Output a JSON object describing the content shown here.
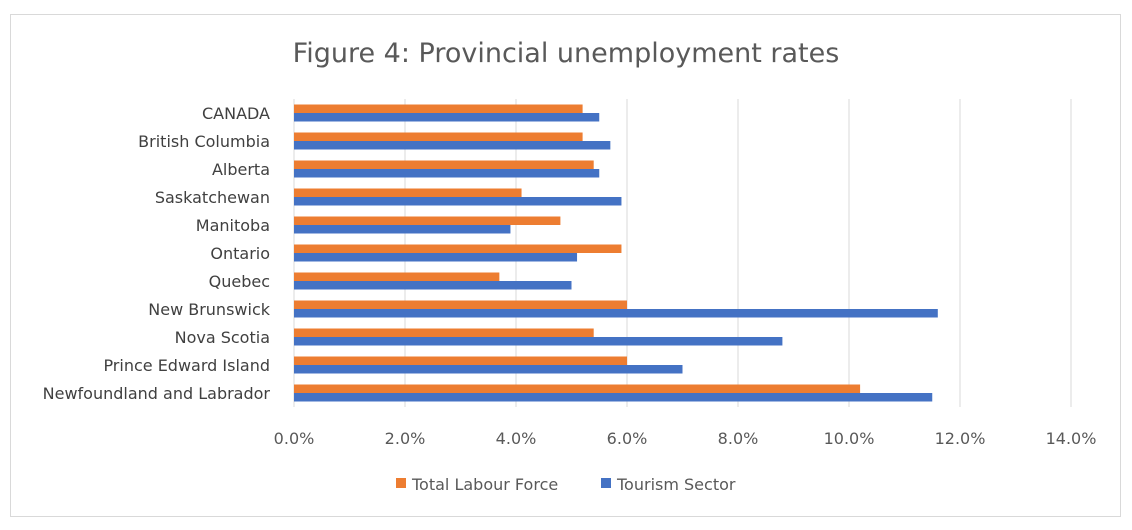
{
  "chart_data": {
    "type": "bar",
    "orientation": "horizontal",
    "title": "Figure 4: Provincial unemployment rates",
    "categories": [
      "CANADA",
      "British Columbia",
      "Alberta",
      "Saskatchewan",
      "Manitoba",
      "Ontario",
      "Quebec",
      "New Brunswick",
      "Nova Scotia",
      "Prince Edward Island",
      "Newfoundland and Labrador"
    ],
    "series": [
      {
        "name": "Total Labour Force",
        "color": "#ED7D31",
        "values": [
          5.2,
          5.2,
          5.4,
          4.1,
          4.8,
          5.9,
          3.7,
          6.0,
          5.4,
          6.0,
          10.2
        ]
      },
      {
        "name": "Tourism Sector",
        "color": "#4472C4",
        "values": [
          5.5,
          5.7,
          5.5,
          5.9,
          3.9,
          5.1,
          5.0,
          11.6,
          8.8,
          7.0,
          11.5
        ]
      }
    ],
    "xlim": [
      0,
      14
    ],
    "x_ticks": [
      "0.0%",
      "2.0%",
      "4.0%",
      "6.0%",
      "8.0%",
      "10.0%",
      "12.0%",
      "14.0%"
    ],
    "grid": true,
    "legend_position": "bottom",
    "xlabel": "",
    "ylabel": ""
  }
}
